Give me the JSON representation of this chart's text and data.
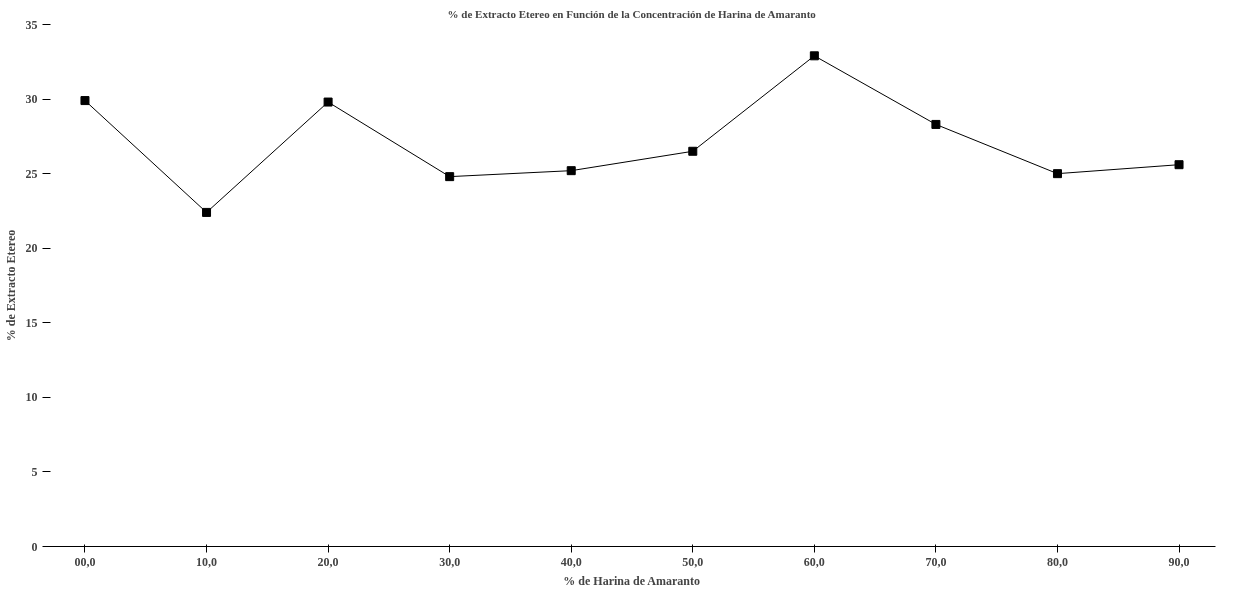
{
  "chart_data": {
    "type": "line",
    "title": "% de Extracto Etereo en Función de la Concentración de Harina de Amaranto",
    "xlabel": "% de Harina de Amaranto",
    "ylabel": "% de Extracto Etereo",
    "categories": [
      "00,0",
      "10,0",
      "20,0",
      "30,0",
      "40,0",
      "50,0",
      "60,0",
      "70,0",
      "80,0",
      "90,0"
    ],
    "series": [
      {
        "color": "#000000",
        "values": [
          29.9,
          22.4,
          29.8,
          24.8,
          25.2,
          26.5,
          32.9,
          28.3,
          25.0,
          25.6
        ]
      }
    ],
    "ylim": [
      0,
      35
    ],
    "yticks": [
      0,
      5,
      10,
      15,
      20,
      25,
      30,
      35
    ],
    "grid": false,
    "marker": "square",
    "line_style": "solid"
  }
}
